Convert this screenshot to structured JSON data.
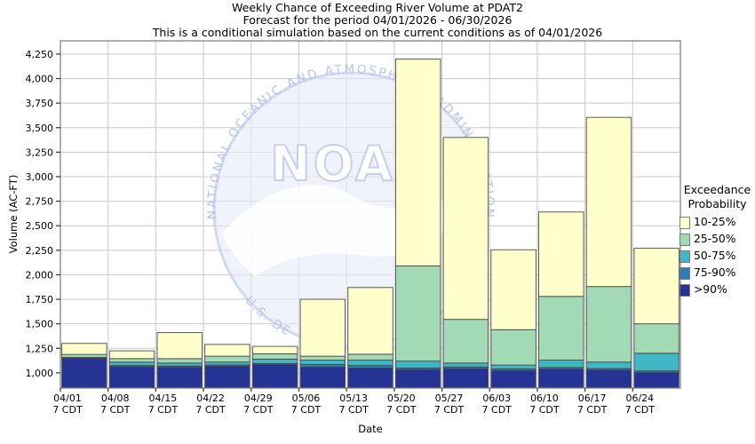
{
  "watermark": {
    "logo_text": "NOAA",
    "arc_text_top": "NATIONAL OCEANIC AND ATMOSPHERIC ADMINISTRATION",
    "arc_text_bottom": "U.S. DE",
    "circle_fill": "#E7EBF9",
    "ring_color": "#C7CFF0",
    "text_color": "#B9C3EB"
  },
  "legend": {
    "title_line1": "Exceedance",
    "title_line2": "Probability",
    "position": "right"
  },
  "chart_data": {
    "type": "bar",
    "stacked": true,
    "title": "Weekly Chance of Exceeding River Volume at PDAT2",
    "subtitle": "Forecast for the period 04/01/2026 - 06/30/2026",
    "note": "This is a conditional simulation based on the current conditions as of 04/01/2026",
    "xlabel": "Date",
    "ylabel": "Volume (AC-FT)",
    "x_categories": [
      "04/01",
      "04/08",
      "04/15",
      "04/22",
      "04/29",
      "05/06",
      "05/13",
      "05/20",
      "05/27",
      "06/03",
      "06/10",
      "06/17",
      "06/24"
    ],
    "x_sublabel": "7 CDT",
    "y_ticks": [
      1000,
      1250,
      1500,
      1750,
      2000,
      2250,
      2500,
      2750,
      3000,
      3250,
      3500,
      3750,
      4000,
      4250
    ],
    "ylim": [
      845,
      4385
    ],
    "baseline": 845,
    "grid": true,
    "series_note": "values are cumulative band tops (exceedance thresholds in AC-FT), listed top-of-stack first",
    "series": [
      {
        "name": "10-25%",
        "color": "#FFFFCC",
        "band_top_values": [
          1300,
          1225,
          1410,
          1290,
          1270,
          1750,
          1870,
          4200,
          3400,
          2255,
          2640,
          3605,
          2270
        ]
      },
      {
        "name": "25-50%",
        "color": "#A1DAB4",
        "band_top_values": [
          1188,
          1145,
          1145,
          1170,
          1195,
          1170,
          1190,
          2090,
          1545,
          1440,
          1780,
          1880,
          1500
        ]
      },
      {
        "name": "50-75%",
        "color": "#41B6C4",
        "band_top_values": [
          1158,
          1110,
          1100,
          1110,
          1140,
          1130,
          1130,
          1120,
          1100,
          1080,
          1130,
          1110,
          1200
        ]
      },
      {
        "name": "75-90%",
        "color": "#2C7FB8",
        "band_top_values": [
          1153,
          1075,
          1070,
          1080,
          1095,
          1085,
          1075,
          1050,
          1060,
          1040,
          1055,
          1045,
          1020
        ]
      },
      {
        "name": ">90%",
        "color": "#253494",
        "band_top_values": [
          1148,
          1065,
          1060,
          1070,
          1085,
          1060,
          1050,
          1035,
          1045,
          1025,
          1040,
          1030,
          1005
        ]
      }
    ],
    "colors": {
      "gridline": "#c9c9c9",
      "frame": "#7a7a7a",
      "bar_border": "#4a4a4a",
      "tick": "#333333"
    }
  }
}
